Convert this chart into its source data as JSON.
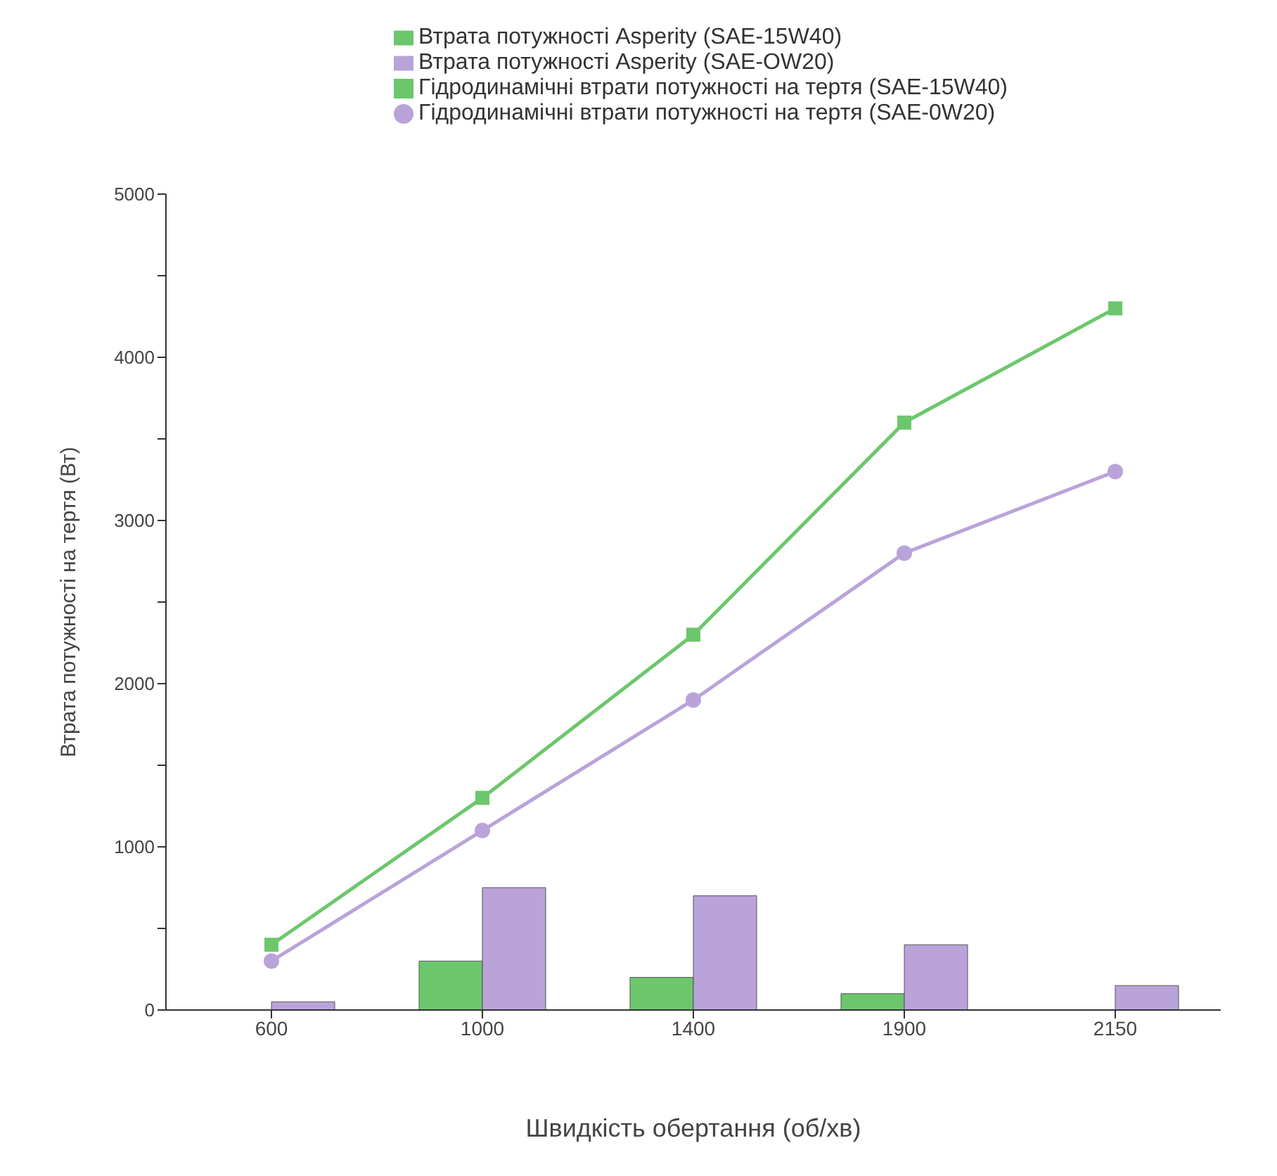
{
  "chart_data": {
    "type": "bar",
    "xlabel": "Швидкість обертання (об/хв)",
    "ylabel": "Втрата потужності на тертя (Вт)",
    "categories": [
      "600",
      "1000",
      "1400",
      "1900",
      "2150"
    ],
    "ylim": [
      0,
      5000
    ],
    "yticks": [
      0,
      {
        "value": 500,
        "label": null
      },
      1000,
      {
        "value": 1500,
        "label": null
      },
      2000,
      {
        "value": 2500,
        "label": null
      },
      3000,
      {
        "value": 3500,
        "label": null
      },
      4000,
      {
        "value": 4500,
        "label": null
      },
      5000
    ],
    "grid": false,
    "legend": "top",
    "series": [
      {
        "name": "Втрата потужності Asperity (SAE-15W40)",
        "color": "#6cc76c",
        "values": [
          0,
          300,
          200,
          100,
          0
        ]
      },
      {
        "name": "Втрата потужності Asperity (SAE-OW20)",
        "color": "#b9a3d9",
        "values": [
          50,
          750,
          700,
          400,
          150
        ]
      },
      {
        "name": "Гідродинамічні втрати потужності на тертя (SAE-15W40)",
        "type": "line",
        "color": "#6cc76c",
        "marker": "square",
        "values": [
          400,
          1300,
          2300,
          3600,
          4300
        ]
      },
      {
        "name": "Гідродинамічні втрати потужності на тертя (SAE-0W20)",
        "type": "line",
        "color": "#b9a3d9",
        "marker": "circle",
        "values": [
          300,
          1100,
          1900,
          2800,
          3300
        ]
      }
    ]
  }
}
